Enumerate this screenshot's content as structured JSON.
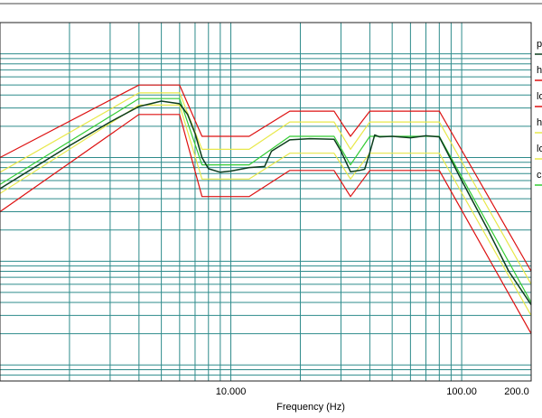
{
  "chart_data": {
    "type": "line",
    "title": "",
    "xlabel": "Frequency (Hz)",
    "ylabel": "",
    "xscale": "log",
    "yscale": "log",
    "xlim": [
      1.0,
      200.0
    ],
    "ylim": [
      7e-05,
      0.2
    ],
    "grid": true,
    "legend_position": "right",
    "x_tick_labels": [
      {
        "value": 10,
        "label": "10.000"
      },
      {
        "value": 100,
        "label": "100.00"
      },
      {
        "value": 200,
        "label": "200.0"
      }
    ],
    "legend": [
      "p",
      "h",
      "lo",
      "h",
      "lo",
      "c"
    ],
    "series": [
      {
        "name": "h",
        "color": "#dd1111",
        "x": [
          1.0,
          4.0,
          6.0,
          7.5,
          12.0,
          18.0,
          28.0,
          33.0,
          40.0,
          80.0,
          200.0
        ],
        "y": [
          0.01,
          0.05,
          0.05,
          0.016,
          0.016,
          0.028,
          0.028,
          0.016,
          0.028,
          0.028,
          0.0008
        ]
      },
      {
        "name": "lo",
        "color": "#dd1111",
        "x": [
          1.0,
          4.0,
          6.0,
          7.5,
          12.0,
          18.0,
          28.0,
          33.0,
          40.0,
          80.0,
          200.0
        ],
        "y": [
          0.003,
          0.026,
          0.026,
          0.0042,
          0.0042,
          0.0075,
          0.0075,
          0.0042,
          0.0075,
          0.0075,
          0.0002
        ]
      },
      {
        "name": "h",
        "color": "#e8e84a",
        "x": [
          1.0,
          4.0,
          6.0,
          7.5,
          12.0,
          18.0,
          28.0,
          33.0,
          40.0,
          80.0,
          200.0
        ],
        "y": [
          0.0072,
          0.042,
          0.042,
          0.012,
          0.012,
          0.022,
          0.022,
          0.012,
          0.022,
          0.022,
          0.0006
        ]
      },
      {
        "name": "lo",
        "color": "#e8e84a",
        "x": [
          1.0,
          4.0,
          6.0,
          7.5,
          12.0,
          18.0,
          28.0,
          33.0,
          40.0,
          80.0,
          200.0
        ],
        "y": [
          0.0045,
          0.032,
          0.032,
          0.0062,
          0.0062,
          0.011,
          0.011,
          0.0062,
          0.011,
          0.011,
          0.0003
        ]
      },
      {
        "name": "c",
        "color": "#33cc33",
        "x": [
          1.0,
          4.0,
          6.0,
          7.5,
          12.0,
          18.0,
          28.0,
          33.0,
          40.0,
          80.0,
          200.0
        ],
        "y": [
          0.0055,
          0.037,
          0.037,
          0.0085,
          0.0085,
          0.016,
          0.016,
          0.0085,
          0.016,
          0.016,
          0.0004
        ]
      },
      {
        "name": "p",
        "color": "#0d3d1d",
        "x": [
          1.0,
          2.0,
          3.0,
          4.0,
          5.0,
          6.0,
          6.5,
          7.0,
          7.5,
          8.0,
          9.0,
          10.0,
          12.0,
          14.0,
          15.0,
          18.0,
          22.0,
          28.0,
          30.0,
          33.0,
          36.0,
          38.0,
          40.0,
          42.0,
          44.0,
          50.0,
          60.0,
          70.0,
          80.0,
          100.0,
          130.0,
          160.0,
          200.0
        ],
        "y": [
          0.005,
          0.013,
          0.022,
          0.031,
          0.035,
          0.033,
          0.026,
          0.017,
          0.01,
          0.0078,
          0.0072,
          0.0074,
          0.008,
          0.0082,
          0.0115,
          0.0148,
          0.0152,
          0.015,
          0.0115,
          0.0073,
          0.0075,
          0.0077,
          0.0112,
          0.0165,
          0.0158,
          0.016,
          0.0155,
          0.0162,
          0.0158,
          0.006,
          0.002,
          0.0008,
          0.00038
        ]
      }
    ]
  }
}
